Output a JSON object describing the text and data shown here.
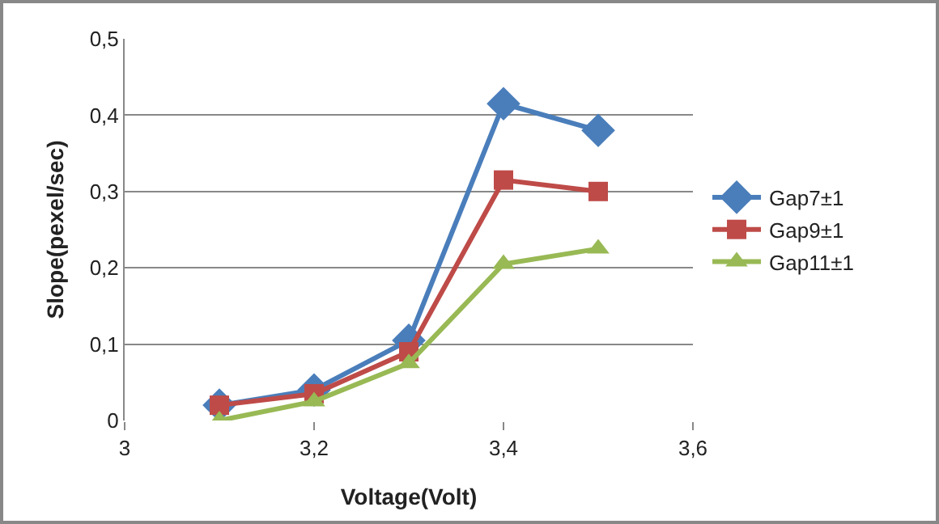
{
  "chart_data": {
    "type": "line",
    "xlabel": "Voltage(Volt)",
    "ylabel": "Slope(pexel/sec)",
    "x": [
      3.1,
      3.2,
      3.3,
      3.4,
      3.5
    ],
    "series": [
      {
        "name": "Gap7±1",
        "color": "#4a7ebb",
        "marker": "diamond",
        "values": [
          0.02,
          0.04,
          0.105,
          0.415,
          0.38
        ]
      },
      {
        "name": "Gap9±1",
        "color": "#be4b48",
        "marker": "square",
        "values": [
          0.02,
          0.035,
          0.09,
          0.315,
          0.3
        ]
      },
      {
        "name": "Gap11±1",
        "color": "#98b954",
        "marker": "triangle",
        "values": [
          0.0,
          0.025,
          0.075,
          0.205,
          0.225
        ]
      }
    ],
    "xlim": [
      3,
      3.6
    ],
    "xticks": [
      3,
      {
        "value": 3.2,
        "label": "3,2"
      },
      {
        "value": 3.4,
        "label": "3,4"
      },
      {
        "value": 3.6,
        "label": "3,6"
      }
    ],
    "ylim": [
      0,
      0.5
    ],
    "yticks": [
      0,
      {
        "value": 0.1,
        "label": "0,1"
      },
      {
        "value": 0.2,
        "label": "0,2"
      },
      {
        "value": 0.3,
        "label": "0,3"
      },
      {
        "value": 0.4,
        "label": "0,4"
      },
      {
        "value": 0.5,
        "label": "0,5"
      }
    ],
    "grid": "y",
    "legend": "right",
    "line_style": "solid"
  }
}
